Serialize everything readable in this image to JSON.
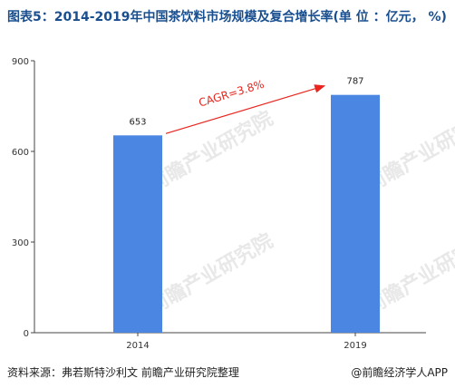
{
  "title": "图表5：2014-2019年中国茶饮料市场规模及复合增长率(单 位 ：亿元， %)",
  "source": "资料来源：弗若斯特沙利文 前瞻产业研究院整理",
  "credit": "@前瞻经济学人APP",
  "watermark": "前瞻产业研究院",
  "colors": {
    "bar": "#4a86e2",
    "arrow": "#e8261f",
    "title": "#1a4f8f"
  },
  "chart_data": {
    "type": "bar",
    "categories": [
      "2014",
      "2019"
    ],
    "values": [
      653,
      787
    ],
    "ylim": [
      0,
      900
    ],
    "yticks": [
      0,
      300,
      600,
      900
    ],
    "data_labels": [
      "653",
      "787"
    ],
    "annotation": "CAGR=3.8%",
    "grid": false
  }
}
